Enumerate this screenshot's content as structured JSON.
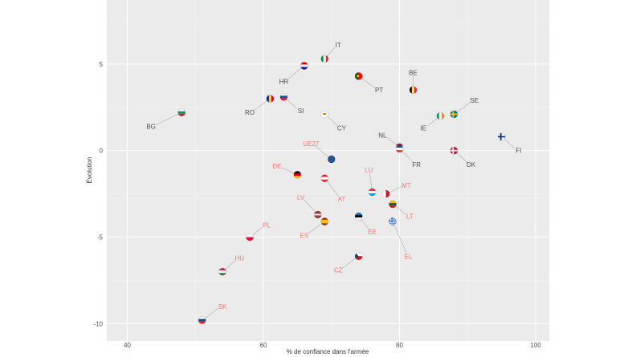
{
  "chart_data": {
    "type": "scatter",
    "xlabel": "% de confiance dans l'armée",
    "ylabel": "Évolution",
    "xlim": [
      37,
      102
    ],
    "ylim": [
      -11,
      8.7
    ],
    "x_ticks": [
      40,
      60,
      80,
      100
    ],
    "x_tick_labels": [
      "40",
      "60",
      "80",
      "100"
    ],
    "y_ticks": [
      5,
      0,
      -5,
      -10
    ],
    "y_tick_labels": [
      "5",
      "0",
      "-5",
      "-10"
    ],
    "grid": true,
    "background": "#ebebeb",
    "label_colors": {
      "positive": "#4d4d4d",
      "negative": "#f8766d"
    },
    "points": [
      {
        "code": "IT",
        "x": 69,
        "y": 5.3,
        "flag": "it",
        "lx": 71,
        "ly": 6.1
      },
      {
        "code": "HR",
        "x": 66,
        "y": 4.9,
        "flag": "hr",
        "lx": 63,
        "ly": 4.0
      },
      {
        "code": "PT",
        "x": 74,
        "y": 4.3,
        "flag": "pt",
        "lx": 77,
        "ly": 3.5
      },
      {
        "code": "BE",
        "x": 82,
        "y": 3.5,
        "flag": "be",
        "lx": 82,
        "ly": 4.5
      },
      {
        "code": "RO",
        "x": 61,
        "y": 3.0,
        "flag": "ro",
        "lx": 58,
        "ly": 2.2
      },
      {
        "code": "SI",
        "x": 63,
        "y": 3.1,
        "flag": "si",
        "lx": 65.5,
        "ly": 2.3
      },
      {
        "code": "SE",
        "x": 88,
        "y": 2.1,
        "flag": "se",
        "lx": 91,
        "ly": 2.9
      },
      {
        "code": "IE",
        "x": 86,
        "y": 2.0,
        "flag": "ie",
        "lx": 83.5,
        "ly": 1.3
      },
      {
        "code": "BG",
        "x": 48,
        "y": 2.2,
        "flag": "bg",
        "lx": 43.5,
        "ly": 1.4
      },
      {
        "code": "CY",
        "x": 69,
        "y": 2.1,
        "flag": "cy",
        "lx": 71.5,
        "ly": 1.3
      },
      {
        "code": "NL",
        "x": 80,
        "y": 0.2,
        "flag": "nl",
        "lx": 77.5,
        "ly": 0.9
      },
      {
        "code": "FR",
        "x": 80,
        "y": 0.1,
        "flag": "fr",
        "lx": 82.5,
        "ly": -0.8
      },
      {
        "code": "FI",
        "x": 95,
        "y": 0.8,
        "flag": "fi",
        "lx": 97.5,
        "ly": 0.0
      },
      {
        "code": "DK",
        "x": 88,
        "y": 0.0,
        "flag": "dk",
        "lx": 90.5,
        "ly": -0.8
      },
      {
        "code": "UE27",
        "x": 70,
        "y": -0.5,
        "flag": "eu",
        "lx": 67,
        "ly": 0.4
      },
      {
        "code": "DE",
        "x": 65,
        "y": -1.4,
        "flag": "de",
        "lx": 62,
        "ly": -0.9
      },
      {
        "code": "AT",
        "x": 69,
        "y": -1.6,
        "flag": "at",
        "lx": 71.5,
        "ly": -2.8
      },
      {
        "code": "LU",
        "x": 76,
        "y": -2.4,
        "flag": "lu",
        "lx": 75.5,
        "ly": -1.1
      },
      {
        "code": "MT",
        "x": 78,
        "y": -2.5,
        "flag": "mt",
        "lx": 81,
        "ly": -2.0
      },
      {
        "code": "LV",
        "x": 68,
        "y": -3.7,
        "flag": "lv",
        "lx": 65.5,
        "ly": -2.7
      },
      {
        "code": "LT",
        "x": 79,
        "y": -3.1,
        "flag": "lt",
        "lx": 81.5,
        "ly": -3.8
      },
      {
        "code": "ES",
        "x": 69,
        "y": -4.1,
        "flag": "es",
        "lx": 66,
        "ly": -4.9
      },
      {
        "code": "EE",
        "x": 74,
        "y": -3.8,
        "flag": "ee",
        "lx": 76,
        "ly": -4.7
      },
      {
        "code": "EL",
        "x": 79,
        "y": -4.1,
        "flag": "el",
        "lx": 81.3,
        "ly": -6.1
      },
      {
        "code": "PL",
        "x": 58,
        "y": -5.0,
        "flag": "pl",
        "lx": 60.5,
        "ly": -4.3
      },
      {
        "code": "HU",
        "x": 54,
        "y": -7.0,
        "flag": "hu",
        "lx": 56.5,
        "ly": -6.2
      },
      {
        "code": "CZ",
        "x": 74,
        "y": -6.1,
        "flag": "cz",
        "lx": 71,
        "ly": -6.9
      },
      {
        "code": "SK",
        "x": 51,
        "y": -9.8,
        "flag": "sk",
        "lx": 54,
        "ly": -9.0
      }
    ]
  }
}
